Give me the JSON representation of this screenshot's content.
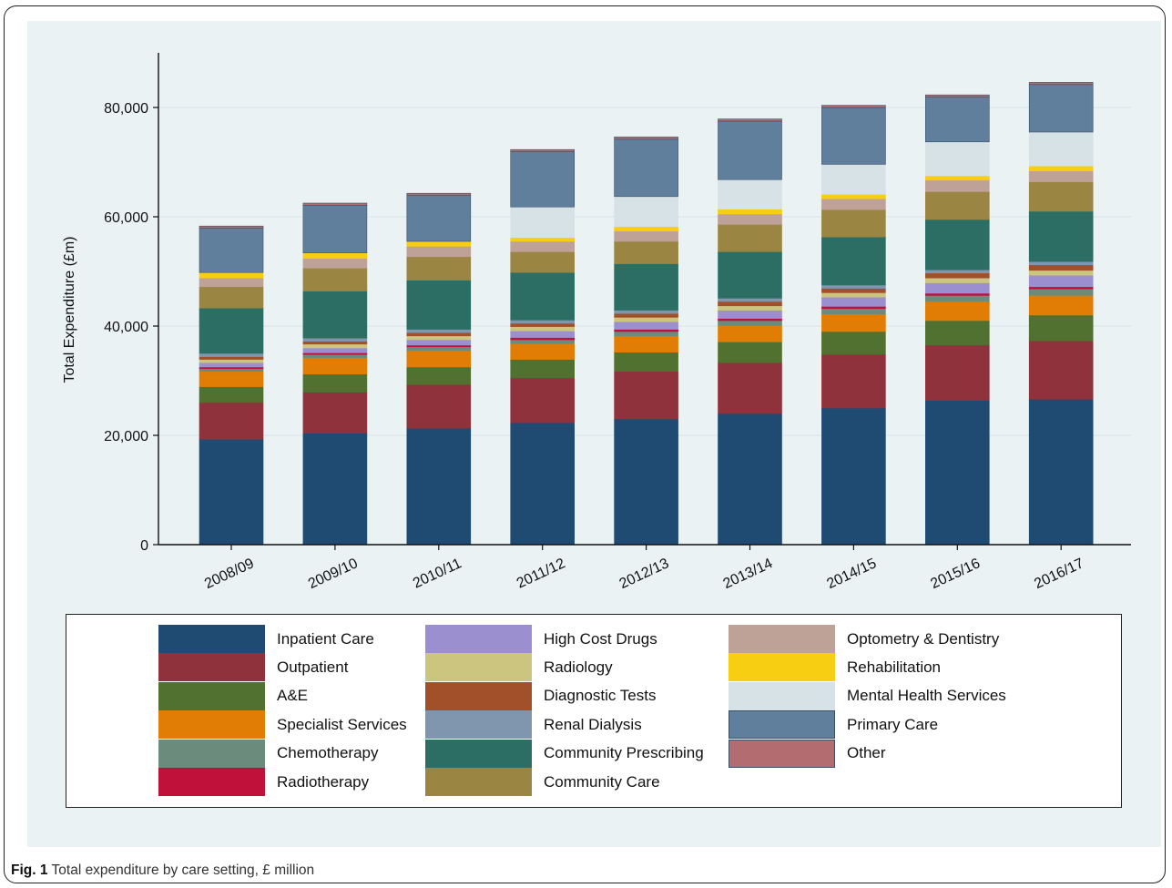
{
  "caption": {
    "prefix": "Fig. 1",
    "text": "Total expenditure by care setting, £ million"
  },
  "chart_data": {
    "type": "bar",
    "stacked": true,
    "ylabel": "Total Expenditure (£m)",
    "ylim": [
      0,
      90000
    ],
    "yticks": [
      0,
      20000,
      40000,
      60000,
      80000
    ],
    "ytick_labels": [
      "0",
      "20,000",
      "40,000",
      "60,000",
      "80,000"
    ],
    "grid": true,
    "legend_position": "bottom",
    "categories": [
      "2008/09",
      "2009/10",
      "2010/11",
      "2011/12",
      "2012/13",
      "2013/14",
      "2014/15",
      "2015/16",
      "2016/17"
    ],
    "series": [
      {
        "name": "Inpatient Care",
        "color": "#1f4a72",
        "values": [
          19300,
          20400,
          21300,
          22300,
          23000,
          24000,
          25000,
          26400,
          26600
        ]
      },
      {
        "name": "Outpatient",
        "color": "#8f323b",
        "values": [
          6700,
          7500,
          8000,
          8200,
          8700,
          9300,
          9800,
          10100,
          10700
        ]
      },
      {
        "name": "A&E",
        "color": "#50712f",
        "values": [
          2900,
          3300,
          3200,
          3400,
          3500,
          3800,
          4200,
          4500,
          4700
        ]
      },
      {
        "name": "Specialist Services",
        "color": "#e17d04",
        "values": [
          2800,
          3000,
          3000,
          2900,
          3000,
          3000,
          3200,
          3500,
          3600
        ]
      },
      {
        "name": "Chemotherapy",
        "color": "#6b8c7c",
        "values": [
          500,
          600,
          700,
          700,
          800,
          900,
          1000,
          1100,
          1200
        ]
      },
      {
        "name": "Radiotherapy",
        "color": "#c0113a",
        "values": [
          300,
          300,
          300,
          400,
          400,
          400,
          400,
          400,
          400
        ]
      },
      {
        "name": "High Cost Drugs",
        "color": "#9b8fd0",
        "values": [
          800,
          900,
          1000,
          1200,
          1400,
          1500,
          1700,
          1900,
          2100
        ]
      },
      {
        "name": "Radiology",
        "color": "#cbc57f",
        "values": [
          600,
          700,
          700,
          800,
          800,
          800,
          800,
          900,
          900
        ]
      },
      {
        "name": "Diagnostic Tests",
        "color": "#a1502a",
        "values": [
          500,
          500,
          600,
          600,
          700,
          800,
          800,
          900,
          1000
        ]
      },
      {
        "name": "Renal Dialysis",
        "color": "#7f96ae",
        "values": [
          600,
          600,
          600,
          600,
          600,
          600,
          600,
          600,
          600
        ]
      },
      {
        "name": "Community Prescribing",
        "color": "#2c6e64",
        "values": [
          8300,
          8600,
          9000,
          8700,
          8500,
          8500,
          8800,
          9200,
          9200
        ]
      },
      {
        "name": "Community Care",
        "color": "#9a8542",
        "values": [
          3900,
          4200,
          4300,
          3800,
          4100,
          5000,
          5000,
          5100,
          5400
        ]
      },
      {
        "name": "Optometry & Dentistry",
        "color": "#bea197",
        "values": [
          1600,
          1800,
          1900,
          1900,
          1900,
          1900,
          2000,
          2100,
          2000
        ]
      },
      {
        "name": "Rehabilitation",
        "color": "#f8ce12",
        "values": [
          1000,
          1000,
          900,
          700,
          800,
          900,
          800,
          800,
          900
        ]
      },
      {
        "name": "Mental Health Services",
        "color": "#d7e2e7",
        "values": [
          0,
          0,
          0,
          5600,
          5500,
          5400,
          5500,
          6200,
          6200
        ]
      },
      {
        "name": "Primary Care",
        "color": "#5f7f9c",
        "values": [
          8100,
          8700,
          8400,
          10100,
          10500,
          10700,
          10400,
          8200,
          8700
        ]
      },
      {
        "name": "Other",
        "color": "#b36c6f",
        "values": [
          400,
          400,
          400,
          400,
          400,
          400,
          400,
          400,
          400
        ]
      }
    ]
  }
}
